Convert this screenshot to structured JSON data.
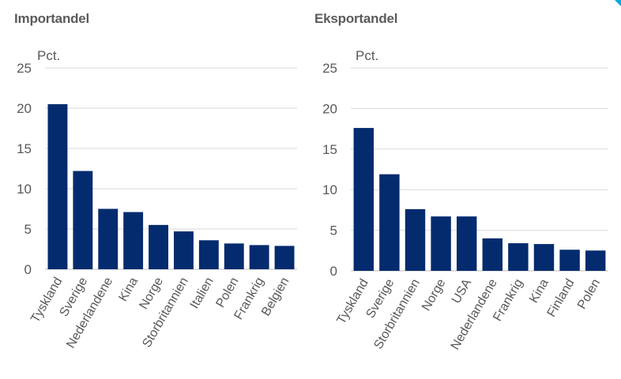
{
  "colors": {
    "bar": "#032b6e",
    "corner": "#00a9e0"
  },
  "chart_data": [
    {
      "type": "bar",
      "title": "Importandel",
      "ylabel": "Pct.",
      "ylim": [
        0,
        25
      ],
      "yticks": [
        0,
        5,
        10,
        15,
        20,
        25
      ],
      "grid": true,
      "categories": [
        "Tyskland",
        "Sverige",
        "Nederlandene",
        "Kina",
        "Norge",
        "Storbritannien",
        "Italien",
        "Polen",
        "Frankrig",
        "Belgien"
      ],
      "values": [
        20.5,
        12.2,
        7.5,
        7.1,
        5.5,
        4.7,
        3.6,
        3.2,
        3.0,
        2.9
      ]
    },
    {
      "type": "bar",
      "title": "Eksportandel",
      "ylabel": "Pct.",
      "ylim": [
        0,
        25
      ],
      "yticks": [
        0,
        5,
        10,
        15,
        20,
        25
      ],
      "grid": true,
      "categories": [
        "Tyskland",
        "Sverige",
        "Storbritannien",
        "Norge",
        "USA",
        "Nederlandene",
        "Frankrig",
        "Kina",
        "Finland",
        "Polen"
      ],
      "values": [
        17.6,
        11.9,
        7.6,
        6.7,
        6.7,
        4.0,
        3.4,
        3.3,
        2.6,
        2.5
      ]
    }
  ]
}
